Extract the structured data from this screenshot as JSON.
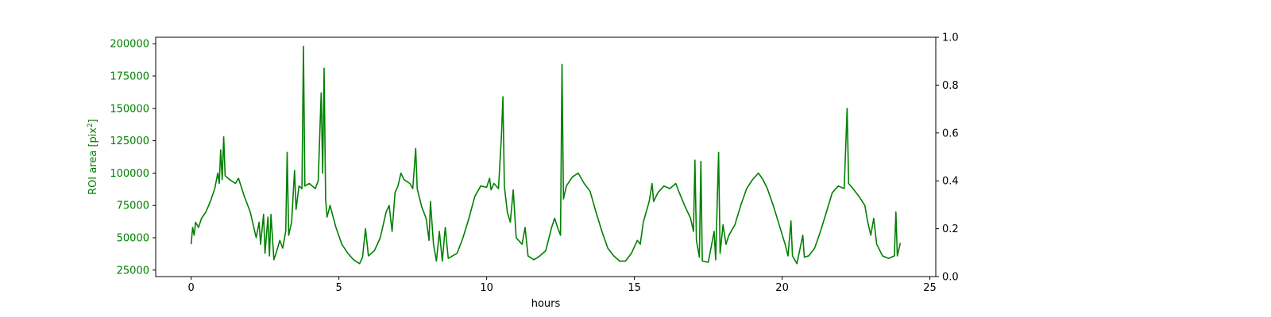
{
  "chart_data": {
    "type": "line",
    "title": "",
    "xlabel": "hours",
    "ylabel": "ROI area [pix",
    "ylabel_sup": "2",
    "ylabel_suffix": "]",
    "y2label": "",
    "xlim": [
      -1.2,
      25.2
    ],
    "ylim": [
      20000,
      205000
    ],
    "y2lim": [
      0.0,
      1.0
    ],
    "xticks": [
      0,
      5,
      10,
      15,
      20,
      25
    ],
    "xtick_labels": [
      "0",
      "5",
      "10",
      "15",
      "20",
      "25"
    ],
    "yticks": [
      25000,
      50000,
      75000,
      100000,
      125000,
      150000,
      175000,
      200000
    ],
    "ytick_labels": [
      "25000",
      "50000",
      "75000",
      "100000",
      "125000",
      "150000",
      "175000",
      "200000"
    ],
    "y2ticks": [
      0.0,
      0.2,
      0.4,
      0.6,
      0.8,
      1.0
    ],
    "y2tick_labels": [
      "0.0",
      "0.2",
      "0.4",
      "0.6",
      "0.8",
      "1.0"
    ],
    "grid": false,
    "legend": "none",
    "colors": {
      "series": "#008000",
      "left_axis": "#008000",
      "right_axis": "#000000",
      "frame": "#000000"
    },
    "series": [
      {
        "values": [
          [
            0.0,
            45000
          ],
          [
            0.05,
            58000
          ],
          [
            0.1,
            52000
          ],
          [
            0.15,
            62000
          ],
          [
            0.25,
            58000
          ],
          [
            0.35,
            65000
          ],
          [
            0.5,
            70000
          ],
          [
            0.65,
            78000
          ],
          [
            0.8,
            88000
          ],
          [
            0.9,
            100000
          ],
          [
            0.95,
            92000
          ],
          [
            1.0,
            118000
          ],
          [
            1.05,
            95000
          ],
          [
            1.1,
            128000
          ],
          [
            1.15,
            98000
          ],
          [
            1.3,
            95000
          ],
          [
            1.5,
            92000
          ],
          [
            1.6,
            96000
          ],
          [
            1.8,
            82000
          ],
          [
            2.0,
            70000
          ],
          [
            2.2,
            50000
          ],
          [
            2.3,
            62000
          ],
          [
            2.35,
            45000
          ],
          [
            2.45,
            68000
          ],
          [
            2.5,
            38000
          ],
          [
            2.6,
            66000
          ],
          [
            2.65,
            36000
          ],
          [
            2.7,
            68000
          ],
          [
            2.8,
            33000
          ],
          [
            2.9,
            40000
          ],
          [
            3.0,
            48000
          ],
          [
            3.1,
            42000
          ],
          [
            3.2,
            55000
          ],
          [
            3.25,
            116000
          ],
          [
            3.3,
            52000
          ],
          [
            3.4,
            62000
          ],
          [
            3.5,
            102000
          ],
          [
            3.55,
            72000
          ],
          [
            3.65,
            90000
          ],
          [
            3.75,
            88000
          ],
          [
            3.8,
            198000
          ],
          [
            3.85,
            90000
          ],
          [
            4.0,
            92000
          ],
          [
            4.2,
            88000
          ],
          [
            4.3,
            94000
          ],
          [
            4.4,
            162000
          ],
          [
            4.45,
            100000
          ],
          [
            4.5,
            181000
          ],
          [
            4.55,
            80000
          ],
          [
            4.6,
            66000
          ],
          [
            4.7,
            75000
          ],
          [
            4.9,
            58000
          ],
          [
            5.1,
            45000
          ],
          [
            5.3,
            38000
          ],
          [
            5.5,
            33000
          ],
          [
            5.7,
            30000
          ],
          [
            5.8,
            35000
          ],
          [
            5.9,
            57000
          ],
          [
            6.0,
            36000
          ],
          [
            6.2,
            40000
          ],
          [
            6.4,
            50000
          ],
          [
            6.6,
            70000
          ],
          [
            6.7,
            75000
          ],
          [
            6.8,
            55000
          ],
          [
            6.9,
            85000
          ],
          [
            7.0,
            90000
          ],
          [
            7.1,
            100000
          ],
          [
            7.2,
            95000
          ],
          [
            7.4,
            92000
          ],
          [
            7.5,
            88000
          ],
          [
            7.6,
            119000
          ],
          [
            7.65,
            88000
          ],
          [
            7.8,
            74000
          ],
          [
            7.95,
            65000
          ],
          [
            8.05,
            48000
          ],
          [
            8.1,
            78000
          ],
          [
            8.2,
            45000
          ],
          [
            8.3,
            32000
          ],
          [
            8.4,
            55000
          ],
          [
            8.5,
            32000
          ],
          [
            8.6,
            58000
          ],
          [
            8.7,
            34000
          ],
          [
            9.0,
            38000
          ],
          [
            9.2,
            50000
          ],
          [
            9.4,
            65000
          ],
          [
            9.6,
            82000
          ],
          [
            9.8,
            90000
          ],
          [
            10.0,
            89000
          ],
          [
            10.1,
            96000
          ],
          [
            10.15,
            87000
          ],
          [
            10.25,
            92000
          ],
          [
            10.4,
            88000
          ],
          [
            10.5,
            128000
          ],
          [
            10.55,
            159000
          ],
          [
            10.6,
            90000
          ],
          [
            10.7,
            70000
          ],
          [
            10.8,
            62000
          ],
          [
            10.9,
            87000
          ],
          [
            11.0,
            50000
          ],
          [
            11.2,
            45000
          ],
          [
            11.3,
            58000
          ],
          [
            11.4,
            36000
          ],
          [
            11.6,
            33000
          ],
          [
            11.8,
            36000
          ],
          [
            12.0,
            40000
          ],
          [
            12.2,
            58000
          ],
          [
            12.3,
            65000
          ],
          [
            12.4,
            58000
          ],
          [
            12.5,
            52000
          ],
          [
            12.55,
            184000
          ],
          [
            12.6,
            80000
          ],
          [
            12.7,
            90000
          ],
          [
            12.9,
            97000
          ],
          [
            13.1,
            100000
          ],
          [
            13.3,
            92000
          ],
          [
            13.5,
            86000
          ],
          [
            13.7,
            70000
          ],
          [
            13.9,
            55000
          ],
          [
            14.1,
            42000
          ],
          [
            14.3,
            36000
          ],
          [
            14.5,
            32000
          ],
          [
            14.7,
            32000
          ],
          [
            14.9,
            38000
          ],
          [
            15.1,
            48000
          ],
          [
            15.2,
            45000
          ],
          [
            15.3,
            62000
          ],
          [
            15.4,
            70000
          ],
          [
            15.5,
            78000
          ],
          [
            15.6,
            92000
          ],
          [
            15.65,
            78000
          ],
          [
            15.8,
            85000
          ],
          [
            16.0,
            90000
          ],
          [
            16.2,
            88000
          ],
          [
            16.4,
            92000
          ],
          [
            16.5,
            86000
          ],
          [
            16.7,
            75000
          ],
          [
            16.9,
            65000
          ],
          [
            17.0,
            55000
          ],
          [
            17.05,
            110000
          ],
          [
            17.1,
            48000
          ],
          [
            17.2,
            35000
          ],
          [
            17.25,
            109000
          ],
          [
            17.3,
            32000
          ],
          [
            17.5,
            31000
          ],
          [
            17.7,
            55000
          ],
          [
            17.75,
            33000
          ],
          [
            17.85,
            116000
          ],
          [
            17.9,
            38000
          ],
          [
            18.0,
            60000
          ],
          [
            18.1,
            45000
          ],
          [
            18.2,
            52000
          ],
          [
            18.4,
            60000
          ],
          [
            18.6,
            75000
          ],
          [
            18.8,
            88000
          ],
          [
            19.0,
            95000
          ],
          [
            19.2,
            100000
          ],
          [
            19.35,
            95000
          ],
          [
            19.5,
            88000
          ],
          [
            19.7,
            75000
          ],
          [
            19.9,
            60000
          ],
          [
            20.1,
            45000
          ],
          [
            20.2,
            36000
          ],
          [
            20.3,
            63000
          ],
          [
            20.35,
            36000
          ],
          [
            20.5,
            30000
          ],
          [
            20.7,
            52000
          ],
          [
            20.75,
            35000
          ],
          [
            20.9,
            36000
          ],
          [
            21.1,
            42000
          ],
          [
            21.3,
            55000
          ],
          [
            21.5,
            70000
          ],
          [
            21.7,
            85000
          ],
          [
            21.9,
            90000
          ],
          [
            22.1,
            88000
          ],
          [
            22.2,
            150000
          ],
          [
            22.25,
            92000
          ],
          [
            22.4,
            88000
          ],
          [
            22.6,
            82000
          ],
          [
            22.8,
            75000
          ],
          [
            22.9,
            62000
          ],
          [
            23.0,
            52000
          ],
          [
            23.1,
            65000
          ],
          [
            23.2,
            45000
          ],
          [
            23.4,
            36000
          ],
          [
            23.6,
            34000
          ],
          [
            23.8,
            36000
          ],
          [
            23.85,
            70000
          ],
          [
            23.9,
            36000
          ],
          [
            24.0,
            46000
          ]
        ]
      }
    ]
  }
}
